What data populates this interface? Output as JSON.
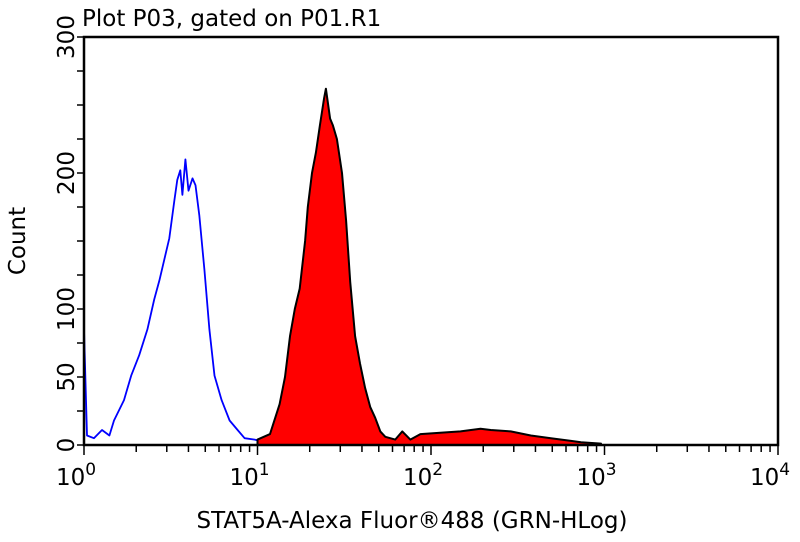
{
  "chart_data": {
    "type": "area",
    "title": "Plot P03, gated on P01.R1",
    "xlabel": "STAT5A-Alexa Fluor®488 (GRN-HLog)",
    "ylabel": "Count",
    "x_scale": "log",
    "xlim": [
      1,
      10000
    ],
    "ylim": [
      0,
      300
    ],
    "x_ticks": [
      {
        "base": "10",
        "exp": "0",
        "value": 1
      },
      {
        "base": "10",
        "exp": "1",
        "value": 10
      },
      {
        "base": "10",
        "exp": "2",
        "value": 100
      },
      {
        "base": "10",
        "exp": "3",
        "value": 1000
      },
      {
        "base": "10",
        "exp": "4",
        "value": 10000
      }
    ],
    "y_tick_labels": [
      {
        "label": "0",
        "value": 0
      },
      {
        "label": "50",
        "value": 50
      },
      {
        "label": "100",
        "value": 100
      },
      {
        "label": "200",
        "value": 200
      },
      {
        "label": "300",
        "value": 300
      }
    ],
    "y_minor_step": 25,
    "grid": false,
    "series": [
      {
        "style": "line",
        "color": "#0000ff",
        "x": [
          1.0,
          1.0,
          1.04,
          1.14,
          1.27,
          1.4,
          1.49,
          1.7,
          1.87,
          2.08,
          2.32,
          2.54,
          2.72,
          3.1,
          3.32,
          3.45,
          3.59,
          3.69,
          3.84,
          4.0,
          4.22,
          4.39,
          4.62,
          4.94,
          5.28,
          5.65,
          6.21,
          6.91,
          7.68,
          8.43,
          9.63,
          11.0,
          20,
          100,
          1000,
          2200
        ],
        "y": [
          0,
          85,
          7,
          5,
          11,
          7,
          18,
          33,
          51,
          66,
          85,
          107,
          121,
          152,
          180,
          195,
          202,
          184,
          210,
          187,
          196,
          191,
          169,
          129,
          85,
          51,
          33,
          18,
          11,
          5,
          4,
          2,
          0,
          0,
          0,
          0
        ]
      },
      {
        "style": "filled",
        "color": "#ff0000",
        "outline": "#000000",
        "x": [
          10.0,
          11.8,
          13.4,
          14.4,
          15.4,
          16.4,
          17.5,
          18.8,
          19.5,
          20.6,
          21.7,
          22.9,
          24.2,
          24.8,
          26.2,
          27.2,
          28.7,
          30.7,
          32.4,
          34.2,
          36.5,
          39.0,
          41.7,
          44.6,
          47.7,
          51.0,
          54.5,
          62.2,
          68.3,
          76.0,
          86.9,
          113,
          148,
          193,
          221,
          288,
          376,
          491,
          641,
          732,
          955
        ],
        "y": [
          4,
          8,
          30,
          50,
          80,
          100,
          115,
          150,
          175,
          200,
          215,
          235,
          255,
          262,
          240,
          235,
          225,
          200,
          165,
          120,
          80,
          60,
          42,
          28,
          20,
          10,
          6,
          4,
          10,
          4,
          8,
          9,
          10,
          12,
          11,
          10,
          7,
          5,
          3,
          2,
          1
        ]
      }
    ]
  }
}
